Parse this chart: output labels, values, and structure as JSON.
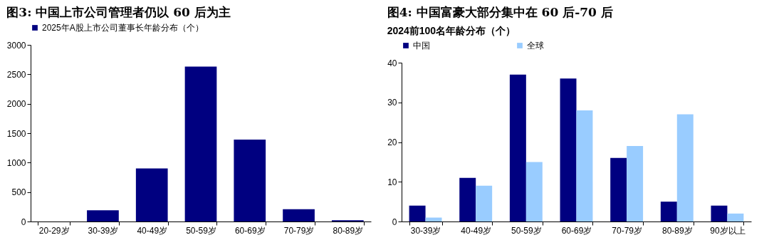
{
  "chart_data": [
    {
      "type": "bar",
      "title": "图3:  中国上市公司管理者仍以 60 后为主",
      "categories": [
        "20-29岁",
        "30-39岁",
        "40-49岁",
        "50-59岁",
        "60-69岁",
        "70-79岁",
        "80-89岁"
      ],
      "series": [
        {
          "name": "2025年A股上市公司董事长年龄分布（个）",
          "color": "#000080",
          "values": [
            0,
            190,
            900,
            2630,
            1390,
            210,
            20
          ]
        }
      ],
      "ylim": [
        0,
        3000
      ],
      "yticks": [
        0,
        500,
        1000,
        1500,
        2000,
        2500,
        3000
      ],
      "grid": false,
      "legend": "top"
    },
    {
      "type": "bar",
      "title": "图4:  中国富豪大部分集中在 60 后-70 后",
      "subtitle": "2024前100名年龄分布（个）",
      "categories": [
        "30-39岁",
        "40-49岁",
        "50-59岁",
        "60-69岁",
        "70-79岁",
        "80-89岁",
        "90岁以上"
      ],
      "series": [
        {
          "name": "中国",
          "color": "#000080",
          "values": [
            4,
            11,
            37,
            36,
            16,
            5,
            4
          ]
        },
        {
          "name": "全球",
          "color": "#99ccff",
          "values": [
            1,
            9,
            15,
            28,
            19,
            27,
            2
          ]
        }
      ],
      "ylim": [
        0,
        40
      ],
      "yticks": [
        0,
        10,
        20,
        30,
        40
      ],
      "grid": false,
      "legend": "top"
    }
  ]
}
